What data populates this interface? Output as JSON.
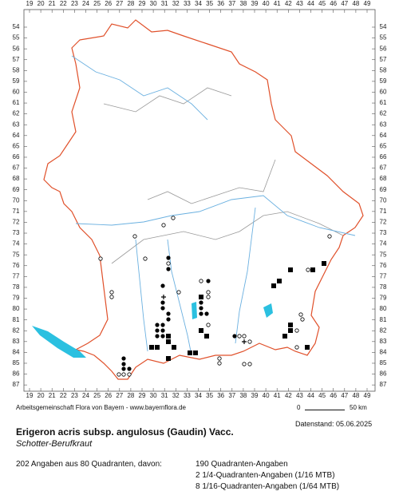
{
  "grid": {
    "columns": [
      19,
      20,
      21,
      22,
      23,
      24,
      25,
      26,
      27,
      28,
      29,
      30,
      31,
      32,
      33,
      34,
      35,
      36,
      37,
      38,
      39,
      40,
      41,
      42,
      43,
      44,
      45,
      46,
      47,
      48,
      49
    ],
    "rows": [
      54,
      55,
      56,
      57,
      58,
      59,
      60,
      61,
      62,
      63,
      64,
      65,
      66,
      67,
      68,
      69,
      70,
      71,
      72,
      73,
      74,
      75,
      76,
      77,
      78,
      79,
      80,
      81,
      82,
      83,
      84,
      85,
      86,
      87
    ]
  },
  "footer": {
    "credit": "Arbeitsgemeinschaft Flora von Bayern - www.bayernflora.de",
    "scale_start": "0",
    "scale_end": "50 km",
    "date": "Datenstand: 05.06.2025"
  },
  "species": {
    "name": "Erigeron acris subsp. angulosus (Gaudin) Vacc.",
    "common_name": "Schotter-Berufkraut"
  },
  "summary": {
    "total": "202 Angaben aus 80 Quadranten, davon:",
    "lines": [
      "190 Quadranten-Angaben",
      "2 1/4-Quadranten-Angaben (1/16 MTB)",
      "8 1/16-Quadranten-Angaben (1/64 MTB)"
    ]
  }
}
